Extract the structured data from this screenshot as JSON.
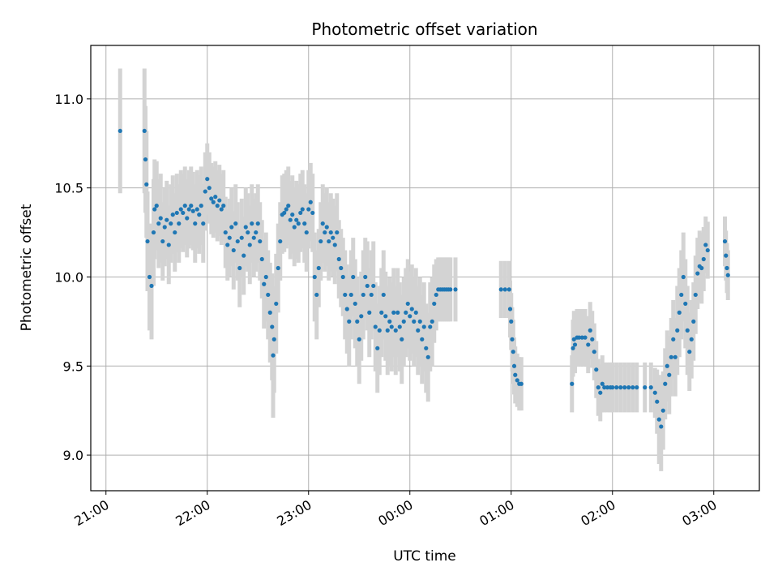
{
  "chart_data": {
    "type": "scatter",
    "title": "Photometric offset variation",
    "xlabel": "UTC time",
    "ylabel": "Photometric offset",
    "x_unit": "hours since 00:00 UTC",
    "xlim": [
      -3.15,
      3.45
    ],
    "ylim": [
      8.8,
      11.3
    ],
    "x_ticks": [
      -3,
      -2,
      -1,
      0,
      1,
      2,
      3
    ],
    "x_tick_labels": [
      "21:00",
      "22:00",
      "23:00",
      "00:00",
      "01:00",
      "02:00",
      "03:00"
    ],
    "y_ticks": [
      9.0,
      9.5,
      10.0,
      10.5,
      11.0
    ],
    "y_tick_labels": [
      "9.0",
      "9.5",
      "10.0",
      "10.5",
      "11.0"
    ],
    "grid": true,
    "colors": {
      "points": "#1f77b4",
      "errorbars": "#d3d3d3",
      "grid": "#b0b0b0"
    },
    "series": [
      {
        "points": [
          [
            -2.86,
            10.82,
            0.35
          ],
          [
            -2.62,
            10.82,
            0.35
          ],
          [
            -2.61,
            10.66,
            0.3
          ],
          [
            -2.6,
            10.52,
            0.3
          ],
          [
            -2.59,
            10.2,
            0.28
          ],
          [
            -2.57,
            10.0,
            0.3
          ],
          [
            -2.55,
            9.95,
            0.3
          ],
          [
            -2.53,
            10.25,
            0.3
          ],
          [
            -2.52,
            10.38,
            0.28
          ],
          [
            -2.5,
            10.4,
            0.25
          ],
          [
            -2.48,
            10.3,
            0.25
          ],
          [
            -2.46,
            10.33,
            0.25
          ],
          [
            -2.44,
            10.2,
            0.22
          ],
          [
            -2.42,
            10.28,
            0.22
          ],
          [
            -2.4,
            10.32,
            0.22
          ],
          [
            -2.38,
            10.18,
            0.22
          ],
          [
            -2.36,
            10.3,
            0.22
          ],
          [
            -2.34,
            10.35,
            0.22
          ],
          [
            -2.32,
            10.25,
            0.22
          ],
          [
            -2.3,
            10.36,
            0.22
          ],
          [
            -2.28,
            10.3,
            0.22
          ],
          [
            -2.26,
            10.38,
            0.22
          ],
          [
            -2.24,
            10.36,
            0.22
          ],
          [
            -2.22,
            10.4,
            0.22
          ],
          [
            -2.2,
            10.33,
            0.22
          ],
          [
            -2.18,
            10.38,
            0.22
          ],
          [
            -2.16,
            10.4,
            0.22
          ],
          [
            -2.14,
            10.37,
            0.22
          ],
          [
            -2.12,
            10.3,
            0.22
          ],
          [
            -2.1,
            10.38,
            0.22
          ],
          [
            -2.08,
            10.35,
            0.22
          ],
          [
            -2.06,
            10.4,
            0.22
          ],
          [
            -2.04,
            10.3,
            0.22
          ],
          [
            -2.02,
            10.48,
            0.22
          ],
          [
            -2.0,
            10.55,
            0.2
          ],
          [
            -1.98,
            10.5,
            0.2
          ],
          [
            -1.96,
            10.44,
            0.2
          ],
          [
            -1.94,
            10.42,
            0.2
          ],
          [
            -1.92,
            10.45,
            0.2
          ],
          [
            -1.9,
            10.4,
            0.2
          ],
          [
            -1.88,
            10.43,
            0.2
          ],
          [
            -1.86,
            10.38,
            0.2
          ],
          [
            -1.84,
            10.4,
            0.2
          ],
          [
            -1.82,
            10.25,
            0.2
          ],
          [
            -1.8,
            10.18,
            0.2
          ],
          [
            -1.78,
            10.22,
            0.22
          ],
          [
            -1.76,
            10.28,
            0.22
          ],
          [
            -1.74,
            10.15,
            0.22
          ],
          [
            -1.72,
            10.3,
            0.22
          ],
          [
            -1.7,
            10.2,
            0.22
          ],
          [
            -1.68,
            10.05,
            0.22
          ],
          [
            -1.66,
            10.22,
            0.22
          ],
          [
            -1.64,
            10.12,
            0.22
          ],
          [
            -1.62,
            10.28,
            0.22
          ],
          [
            -1.6,
            10.25,
            0.22
          ],
          [
            -1.58,
            10.18,
            0.22
          ],
          [
            -1.56,
            10.3,
            0.22
          ],
          [
            -1.54,
            10.22,
            0.22
          ],
          [
            -1.52,
            10.25,
            0.22
          ],
          [
            -1.5,
            10.3,
            0.22
          ],
          [
            -1.48,
            10.2,
            0.22
          ],
          [
            -1.46,
            10.1,
            0.22
          ],
          [
            -1.44,
            9.96,
            0.25
          ],
          [
            -1.42,
            10.0,
            0.25
          ],
          [
            -1.4,
            9.9,
            0.25
          ],
          [
            -1.38,
            9.8,
            0.28
          ],
          [
            -1.36,
            9.72,
            0.3
          ],
          [
            -1.35,
            9.56,
            0.35
          ],
          [
            -1.34,
            9.65,
            0.3
          ],
          [
            -1.32,
            9.85,
            0.28
          ],
          [
            -1.3,
            10.05,
            0.25
          ],
          [
            -1.28,
            10.2,
            0.22
          ],
          [
            -1.26,
            10.35,
            0.22
          ],
          [
            -1.24,
            10.36,
            0.22
          ],
          [
            -1.22,
            10.38,
            0.22
          ],
          [
            -1.2,
            10.4,
            0.22
          ],
          [
            -1.18,
            10.32,
            0.22
          ],
          [
            -1.16,
            10.35,
            0.22
          ],
          [
            -1.14,
            10.28,
            0.22
          ],
          [
            -1.12,
            10.32,
            0.22
          ],
          [
            -1.1,
            10.3,
            0.22
          ],
          [
            -1.08,
            10.36,
            0.22
          ],
          [
            -1.06,
            10.38,
            0.22
          ],
          [
            -1.04,
            10.3,
            0.22
          ],
          [
            -1.02,
            10.25,
            0.22
          ],
          [
            -1.0,
            10.38,
            0.22
          ],
          [
            -0.98,
            10.42,
            0.22
          ],
          [
            -0.96,
            10.36,
            0.22
          ],
          [
            -0.94,
            10.0,
            0.25
          ],
          [
            -0.92,
            9.9,
            0.25
          ],
          [
            -0.9,
            10.05,
            0.22
          ],
          [
            -0.88,
            10.2,
            0.22
          ],
          [
            -0.86,
            10.3,
            0.22
          ],
          [
            -0.84,
            10.25,
            0.22
          ],
          [
            -0.82,
            10.28,
            0.22
          ],
          [
            -0.8,
            10.2,
            0.22
          ],
          [
            -0.78,
            10.25,
            0.22
          ],
          [
            -0.76,
            10.22,
            0.22
          ],
          [
            -0.74,
            10.18,
            0.22
          ],
          [
            -0.72,
            10.25,
            0.22
          ],
          [
            -0.7,
            10.1,
            0.22
          ],
          [
            -0.68,
            10.05,
            0.22
          ],
          [
            -0.66,
            10.0,
            0.22
          ],
          [
            -0.64,
            9.9,
            0.25
          ],
          [
            -0.62,
            9.82,
            0.25
          ],
          [
            -0.6,
            9.75,
            0.25
          ],
          [
            -0.58,
            9.9,
            0.25
          ],
          [
            -0.56,
            10.0,
            0.22
          ],
          [
            -0.54,
            9.85,
            0.25
          ],
          [
            -0.52,
            9.75,
            0.25
          ],
          [
            -0.5,
            9.65,
            0.25
          ],
          [
            -0.48,
            9.78,
            0.25
          ],
          [
            -0.46,
            9.9,
            0.25
          ],
          [
            -0.44,
            10.0,
            0.22
          ],
          [
            -0.42,
            9.95,
            0.25
          ],
          [
            -0.4,
            9.8,
            0.25
          ],
          [
            -0.38,
            9.9,
            0.25
          ],
          [
            -0.36,
            9.95,
            0.25
          ],
          [
            -0.34,
            9.72,
            0.25
          ],
          [
            -0.32,
            9.6,
            0.25
          ],
          [
            -0.3,
            9.7,
            0.25
          ],
          [
            -0.28,
            9.8,
            0.25
          ],
          [
            -0.26,
            9.9,
            0.25
          ],
          [
            -0.24,
            9.78,
            0.25
          ],
          [
            -0.22,
            9.7,
            0.25
          ],
          [
            -0.2,
            9.75,
            0.25
          ],
          [
            -0.18,
            9.72,
            0.25
          ],
          [
            -0.16,
            9.8,
            0.25
          ],
          [
            -0.14,
            9.7,
            0.25
          ],
          [
            -0.12,
            9.8,
            0.25
          ],
          [
            -0.1,
            9.72,
            0.25
          ],
          [
            -0.08,
            9.65,
            0.25
          ],
          [
            -0.06,
            9.75,
            0.25
          ],
          [
            -0.04,
            9.8,
            0.25
          ],
          [
            -0.02,
            9.85,
            0.25
          ],
          [
            0.0,
            9.78,
            0.25
          ],
          [
            0.02,
            9.82,
            0.25
          ],
          [
            0.04,
            9.75,
            0.25
          ],
          [
            0.06,
            9.8,
            0.25
          ],
          [
            0.08,
            9.7,
            0.25
          ],
          [
            0.1,
            9.75,
            0.25
          ],
          [
            0.12,
            9.65,
            0.25
          ],
          [
            0.14,
            9.72,
            0.25
          ],
          [
            0.16,
            9.6,
            0.25
          ],
          [
            0.18,
            9.55,
            0.25
          ],
          [
            0.2,
            9.72,
            0.25
          ],
          [
            0.22,
            9.75,
            0.25
          ],
          [
            0.24,
            9.85,
            0.22
          ],
          [
            0.26,
            9.9,
            0.2
          ],
          [
            0.28,
            9.93,
            0.18
          ],
          [
            0.3,
            9.93,
            0.18
          ],
          [
            0.32,
            9.93,
            0.18
          ],
          [
            0.34,
            9.93,
            0.18
          ],
          [
            0.36,
            9.93,
            0.18
          ],
          [
            0.38,
            9.93,
            0.18
          ],
          [
            0.4,
            9.93,
            0.18
          ],
          [
            0.45,
            9.93,
            0.18
          ],
          [
            0.9,
            9.93,
            0.16
          ],
          [
            0.94,
            9.93,
            0.16
          ],
          [
            0.98,
            9.93,
            0.16
          ],
          [
            0.99,
            9.82,
            0.16
          ],
          [
            1.0,
            9.75,
            0.16
          ],
          [
            1.01,
            9.65,
            0.18
          ],
          [
            1.02,
            9.58,
            0.18
          ],
          [
            1.03,
            9.5,
            0.16
          ],
          [
            1.04,
            9.45,
            0.16
          ],
          [
            1.06,
            9.42,
            0.15
          ],
          [
            1.08,
            9.4,
            0.15
          ],
          [
            1.1,
            9.4,
            0.15
          ],
          [
            1.6,
            9.4,
            0.16
          ],
          [
            1.61,
            9.6,
            0.16
          ],
          [
            1.62,
            9.65,
            0.16
          ],
          [
            1.63,
            9.62,
            0.16
          ],
          [
            1.65,
            9.66,
            0.16
          ],
          [
            1.67,
            9.66,
            0.16
          ],
          [
            1.7,
            9.66,
            0.16
          ],
          [
            1.73,
            9.66,
            0.16
          ],
          [
            1.76,
            9.62,
            0.16
          ],
          [
            1.78,
            9.7,
            0.16
          ],
          [
            1.8,
            9.65,
            0.16
          ],
          [
            1.82,
            9.58,
            0.16
          ],
          [
            1.84,
            9.48,
            0.16
          ],
          [
            1.86,
            9.38,
            0.16
          ],
          [
            1.88,
            9.35,
            0.16
          ],
          [
            1.9,
            9.4,
            0.16
          ],
          [
            1.92,
            9.38,
            0.14
          ],
          [
            1.95,
            9.38,
            0.14
          ],
          [
            1.98,
            9.38,
            0.14
          ],
          [
            2.0,
            9.38,
            0.14
          ],
          [
            2.04,
            9.38,
            0.14
          ],
          [
            2.08,
            9.38,
            0.14
          ],
          [
            2.12,
            9.38,
            0.14
          ],
          [
            2.16,
            9.38,
            0.14
          ],
          [
            2.2,
            9.38,
            0.14
          ],
          [
            2.24,
            9.38,
            0.14
          ],
          [
            2.32,
            9.38,
            0.14
          ],
          [
            2.38,
            9.38,
            0.14
          ],
          [
            2.42,
            9.35,
            0.14
          ],
          [
            2.44,
            9.3,
            0.18
          ],
          [
            2.46,
            9.2,
            0.25
          ],
          [
            2.48,
            9.16,
            0.25
          ],
          [
            2.5,
            9.25,
            0.22
          ],
          [
            2.52,
            9.4,
            0.2
          ],
          [
            2.54,
            9.5,
            0.2
          ],
          [
            2.56,
            9.45,
            0.22
          ],
          [
            2.58,
            9.55,
            0.22
          ],
          [
            2.6,
            9.65,
            0.22
          ],
          [
            2.62,
            9.55,
            0.22
          ],
          [
            2.64,
            9.7,
            0.25
          ],
          [
            2.66,
            9.8,
            0.25
          ],
          [
            2.68,
            9.9,
            0.25
          ],
          [
            2.7,
            10.0,
            0.25
          ],
          [
            2.72,
            9.85,
            0.25
          ],
          [
            2.74,
            9.7,
            0.25
          ],
          [
            2.76,
            9.58,
            0.22
          ],
          [
            2.78,
            9.65,
            0.22
          ],
          [
            2.8,
            9.75,
            0.22
          ],
          [
            2.82,
            9.9,
            0.22
          ],
          [
            2.84,
            10.02,
            0.2
          ],
          [
            2.86,
            10.06,
            0.2
          ],
          [
            2.88,
            10.05,
            0.2
          ],
          [
            2.9,
            10.1,
            0.18
          ],
          [
            2.92,
            10.18,
            0.16
          ],
          [
            2.94,
            10.15,
            0.16
          ],
          [
            3.11,
            10.2,
            0.14
          ],
          [
            3.12,
            10.12,
            0.14
          ],
          [
            3.13,
            10.05,
            0.14
          ],
          [
            3.14,
            10.01,
            0.14
          ]
        ]
      }
    ]
  }
}
